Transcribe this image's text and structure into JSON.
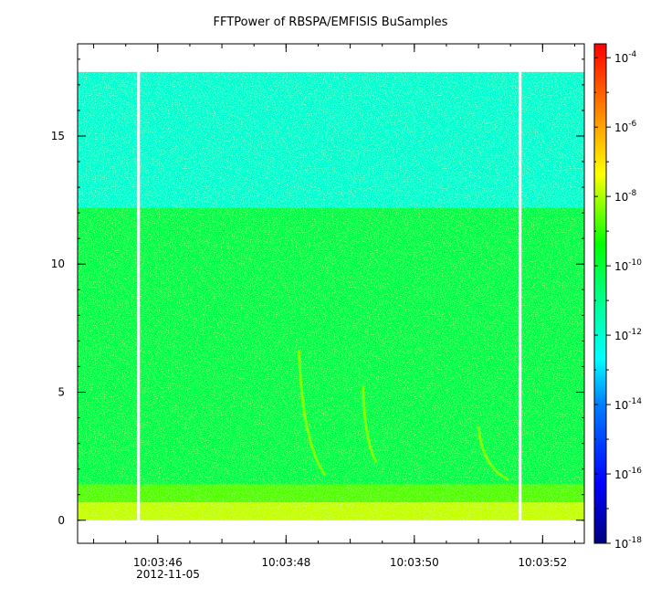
{
  "chart_data": {
    "type": "heatmap",
    "title": "FFTPower of RBSPA/EMFISIS  BuSamples",
    "xlabel": "",
    "ylabel": "",
    "x_ticks": [
      "10:03:46",
      "10:03:48",
      "10:03:50",
      "10:03:52"
    ],
    "x_date_label": "2012-11-05",
    "y_ticks": [
      0,
      5,
      10,
      15
    ],
    "ylim": [
      -0.9,
      18.6
    ],
    "xlim_seconds": [
      44.75,
      52.65
    ],
    "colorbar": {
      "scale": "log",
      "range_exponents": [
        -18,
        -3.6
      ],
      "ticks": [
        {
          "base": "10",
          "exp": "-4"
        },
        {
          "base": "10",
          "exp": "-6"
        },
        {
          "base": "10",
          "exp": "-8"
        },
        {
          "base": "10",
          "exp": "-10"
        },
        {
          "base": "10",
          "exp": "-12"
        },
        {
          "base": "10",
          "exp": "-14"
        },
        {
          "base": "10",
          "exp": "-16"
        },
        {
          "base": "10",
          "exp": "-18"
        }
      ]
    },
    "data_gaps_seconds": [
      45.7,
      51.65
    ],
    "bands": [
      {
        "y_from": 0,
        "y_to": 0.7,
        "log_power": -7.8
      },
      {
        "y_from": 0.7,
        "y_to": 1.4,
        "log_power": -8.7
      },
      {
        "y_from": 1.4,
        "y_to": 12.2,
        "log_power": -10.2
      },
      {
        "y_from": 12.2,
        "y_to": 17.5,
        "log_power": -12.0
      }
    ],
    "chorus_streaks": [
      {
        "t_start": 48.2,
        "y_start": 6.6,
        "t_end": 48.6,
        "y_end": 1.8
      },
      {
        "t_start": 49.2,
        "y_start": 5.2,
        "t_end": 49.4,
        "y_end": 2.3
      },
      {
        "t_start": 51.0,
        "y_start": 3.6,
        "t_end": 51.45,
        "y_end": 1.6
      }
    ]
  }
}
